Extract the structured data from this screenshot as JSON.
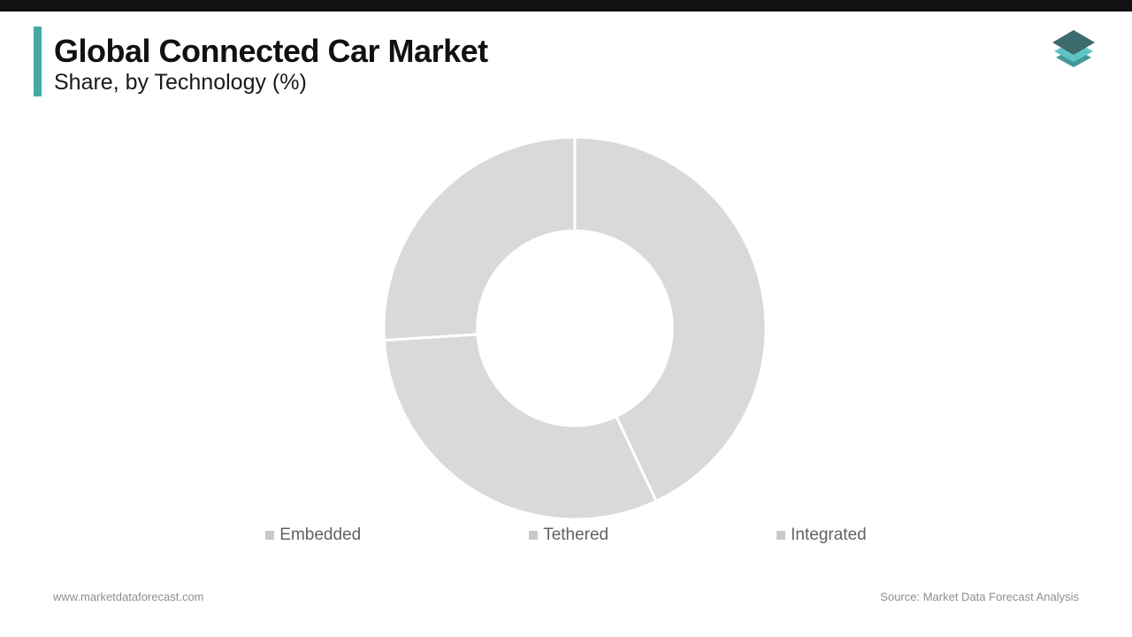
{
  "header": {
    "title": "Global Connected Car Market",
    "subtitle": "Share, by Technology (%)",
    "accent_color": "#43a9a7"
  },
  "chart_data": {
    "type": "pie",
    "subtype": "donut",
    "title": "Global Connected Car Market Share, by Technology (%)",
    "categories": [
      "Embedded",
      "Tethered",
      "Integrated"
    ],
    "values": [
      43,
      31,
      26
    ],
    "unit": "%",
    "segment_color": "#d9d9d9",
    "separator_color": "#ffffff",
    "start_angle_deg": 0,
    "direction": "clockwise",
    "inner_radius_ratio": 0.51,
    "legend_position": "bottom",
    "data_labels": false
  },
  "legend": {
    "items": [
      {
        "label": "Embedded",
        "color": "#c9c9c9"
      },
      {
        "label": "Tethered",
        "color": "#c9c9c9"
      },
      {
        "label": "Integrated",
        "color": "#c9c9c9"
      }
    ]
  },
  "footer": {
    "left": "www.marketdataforecast.com",
    "right": "Source: Market Data Forecast Analysis"
  },
  "branding": {
    "logo": "market-data-forecast-layers-logo",
    "logo_colors": [
      "#3d6b6e",
      "#5fc4c6",
      "#47979b"
    ]
  }
}
